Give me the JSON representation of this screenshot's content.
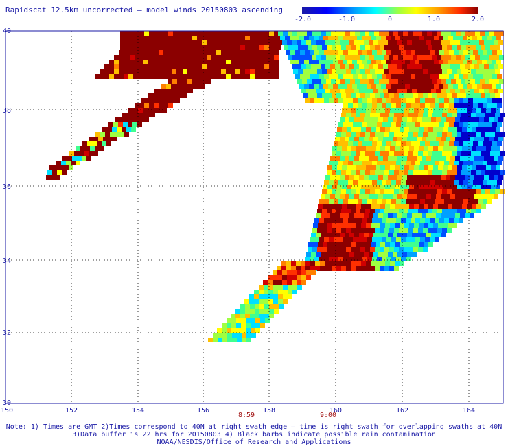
{
  "header": {
    "title": "Rapidscat 12.5km uncorrected — model winds 20150803 ascending"
  },
  "colorbar": {
    "labels": [
      "-2.0",
      "-1.0",
      "0",
      "1.0",
      "2.0"
    ]
  },
  "axes": {
    "lon_labels": [
      "150",
      "152",
      "154",
      "156",
      "158",
      "160",
      "162",
      "164"
    ],
    "lat_labels": [
      "40",
      "38",
      "36",
      "34",
      "32",
      "30"
    ]
  },
  "times": [
    "8:59",
    "9:00"
  ],
  "notes": {
    "line1": "Note: 1) Times are GMT 2)Times correspond to 40N at right swath edge — time is right swath for overlapping swaths at 40N",
    "line2": "3)Data buffer is 22 hrs for 20150803 4) Black barbs indicate possible rain contamination",
    "line3": "NOAA/NESDIS/Office of Research and Applications"
  },
  "colors": {
    "axis_blue": "#1a1aa6",
    "time_red": "#a01010",
    "max_red": "#8b0000"
  }
}
